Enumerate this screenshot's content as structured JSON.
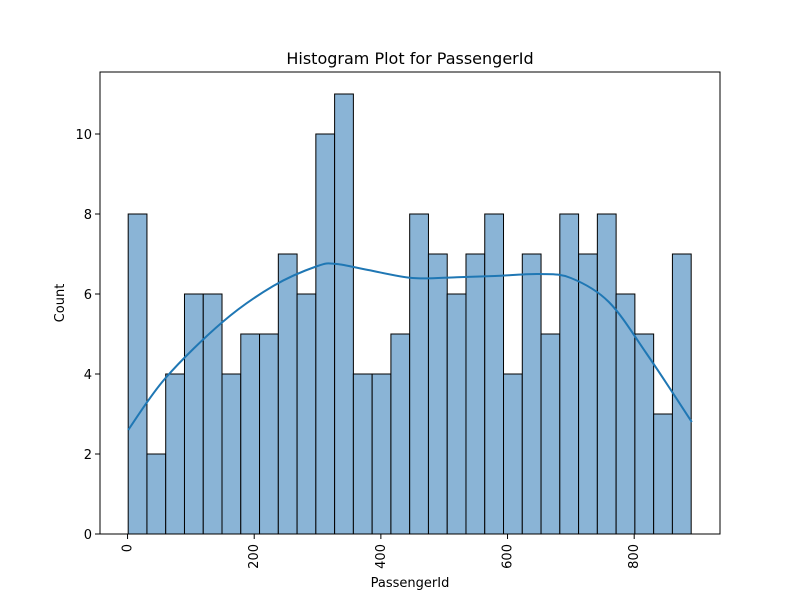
{
  "chart_data": {
    "type": "bar",
    "title": "Histogram Plot for PassengerId",
    "xlabel": "PassengerId",
    "ylabel": "Count",
    "bin_start": 1,
    "bin_width": 29.6333,
    "values": [
      8,
      2,
      4,
      6,
      6,
      4,
      5,
      5,
      7,
      6,
      10,
      11,
      4,
      4,
      5,
      8,
      7,
      6,
      7,
      8,
      4,
      7,
      5,
      8,
      7,
      8,
      6,
      5,
      3,
      7
    ],
    "xlim": [
      -43.5,
      935.5
    ],
    "ylim": [
      0,
      11.55
    ],
    "xticks": [
      0,
      200,
      400,
      600,
      800
    ],
    "xtick_labels": [
      "0",
      "200",
      "400",
      "600",
      "800"
    ],
    "yticks": [
      0,
      2,
      4,
      6,
      8,
      10
    ],
    "ytick_labels": [
      "0",
      "2",
      "4",
      "6",
      "8",
      "10"
    ],
    "kde_curve": {
      "x": [
        1,
        60,
        150,
        230,
        300,
        330,
        380,
        450,
        520,
        580,
        650,
        700,
        760,
        820,
        891
      ],
      "y": [
        2.6,
        3.9,
        5.3,
        6.2,
        6.7,
        6.75,
        6.6,
        6.4,
        6.42,
        6.45,
        6.5,
        6.4,
        5.8,
        4.5,
        2.8
      ]
    },
    "grid": false,
    "colors": {
      "bar_fill": "#8ab4d6",
      "bar_edge": "#000000",
      "kde_line": "#1f77b4"
    }
  }
}
